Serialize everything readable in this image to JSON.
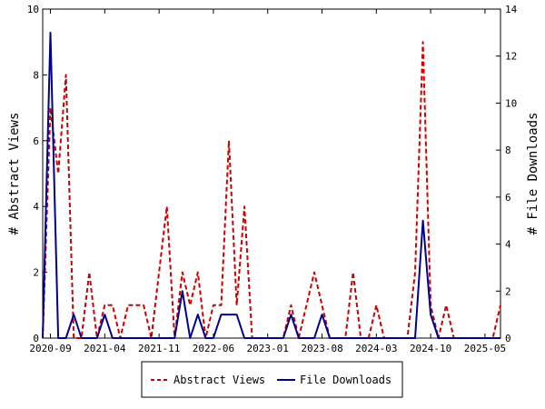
{
  "chart_data": {
    "type": "line",
    "x": [
      "2020-08",
      "2020-09",
      "2020-10",
      "2020-11",
      "2020-12",
      "2021-01",
      "2021-02",
      "2021-03",
      "2021-04",
      "2021-05",
      "2021-06",
      "2021-07",
      "2021-08",
      "2021-09",
      "2021-10",
      "2021-11",
      "2021-12",
      "2022-01",
      "2022-02",
      "2022-03",
      "2022-04",
      "2022-05",
      "2022-06",
      "2022-07",
      "2022-08",
      "2022-09",
      "2022-10",
      "2022-11",
      "2022-12",
      "2023-01",
      "2023-02",
      "2023-03",
      "2023-04",
      "2023-05",
      "2023-06",
      "2023-07",
      "2023-08",
      "2023-09",
      "2023-10",
      "2023-11",
      "2023-12",
      "2024-01",
      "2024-02",
      "2024-03",
      "2024-04",
      "2024-05",
      "2024-06",
      "2024-07",
      "2024-08",
      "2024-09",
      "2024-10",
      "2024-11",
      "2024-12",
      "2025-01",
      "2025-02",
      "2025-03",
      "2025-04",
      "2025-05",
      "2025-06",
      "2025-07"
    ],
    "x_ticks": [
      "2020-09",
      "2021-04",
      "2021-11",
      "2022-06",
      "2023-01",
      "2023-08",
      "2024-03",
      "2024-10",
      "2025-05"
    ],
    "series": [
      {
        "name": "Abstract Views",
        "axis": "left",
        "color": "#cc0000",
        "style": "dashed",
        "values": [
          0,
          7,
          5,
          8,
          0,
          0,
          2,
          0,
          1,
          1,
          0,
          1,
          1,
          1,
          0,
          2,
          4,
          0,
          2,
          1,
          2,
          0,
          1,
          1,
          6,
          1,
          4,
          0,
          0,
          0,
          0,
          0,
          1,
          0,
          1,
          2,
          1,
          0,
          0,
          0,
          2,
          0,
          0,
          1,
          0,
          0,
          0,
          0,
          2,
          9,
          1,
          0,
          1,
          0,
          0,
          0,
          0,
          0,
          0,
          1
        ]
      },
      {
        "name": "File Downloads",
        "axis": "right",
        "color": "#00008b",
        "style": "solid",
        "values": [
          0,
          13,
          0,
          0,
          1,
          0,
          0,
          0,
          1,
          0,
          0,
          0,
          0,
          0,
          0,
          0,
          0,
          0,
          2,
          0,
          1,
          0,
          0,
          1,
          1,
          1,
          0,
          0,
          0,
          0,
          0,
          0,
          1,
          0,
          0,
          0,
          1,
          0,
          0,
          0,
          0,
          0,
          0,
          0,
          0,
          0,
          0,
          0,
          0,
          5,
          1,
          0,
          0,
          0,
          0,
          0,
          0,
          0,
          0,
          0
        ]
      }
    ],
    "ylabel_left": "# Abstract Views",
    "ylabel_right": "# File Downloads",
    "ylim_left": [
      0,
      10
    ],
    "ylim_right": [
      0,
      14
    ],
    "yticks_left": [
      0,
      2,
      4,
      6,
      8,
      10
    ],
    "yticks_right": [
      0,
      2,
      4,
      6,
      8,
      10,
      12,
      14
    ],
    "legend_position": "bottom-center",
    "grid": false
  }
}
